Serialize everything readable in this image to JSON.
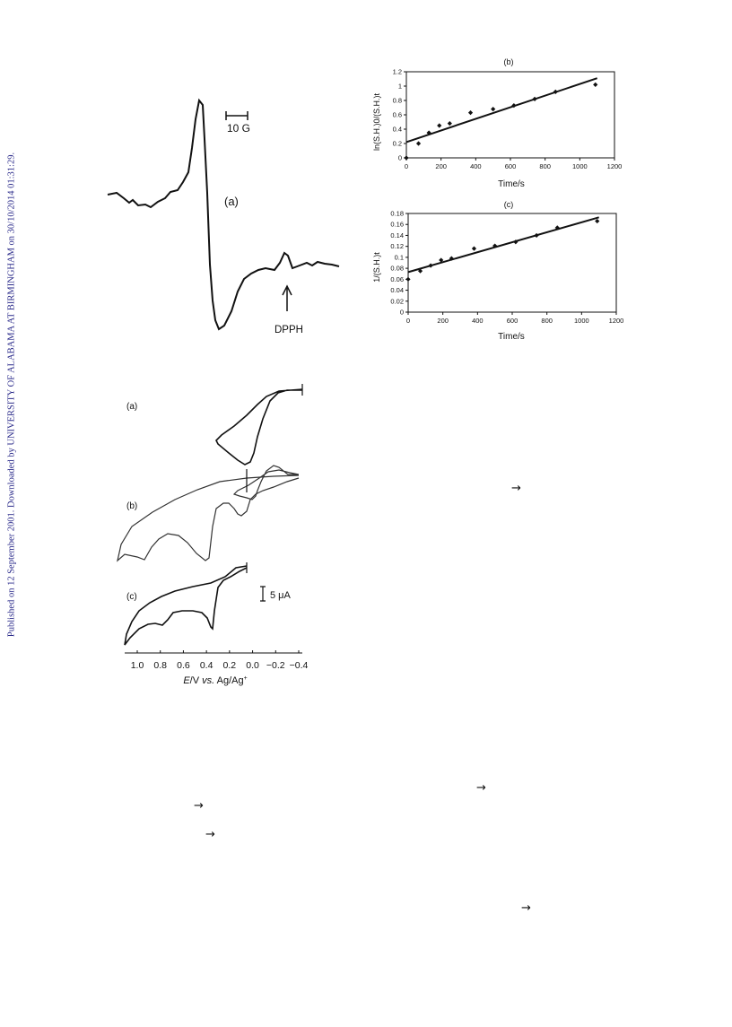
{
  "sidebar_note": "Published on 12 September 2001. Downloaded by UNIVERSITY OF ALABAMA AT BIRMINGHAM on 30/10/2014 01:31:29.",
  "esr": {
    "label": "(a)",
    "scale_label": "10 G",
    "marker_label": "DPPH"
  },
  "arrows": [
    "→",
    "→",
    "→",
    "→",
    "→"
  ],
  "chart_data": [
    {
      "type": "scatter",
      "panel_label": "(b)",
      "title": "",
      "xlabel": "Time/s",
      "ylabel": "ln(S.H.)0/(S.H.)t",
      "xlim": [
        0,
        1200
      ],
      "ylim": [
        0,
        1.2
      ],
      "x_ticks": [
        "0",
        "200",
        "400",
        "600",
        "800",
        "1000",
        "1200"
      ],
      "y_ticks": [
        "0",
        "0.2",
        "0.4",
        "0.6",
        "0.8",
        "1",
        "1.2"
      ],
      "points": [
        [
          0,
          0
        ],
        [
          70,
          0.2
        ],
        [
          130,
          0.35
        ],
        [
          190,
          0.45
        ],
        [
          250,
          0.48
        ],
        [
          370,
          0.63
        ],
        [
          500,
          0.68
        ],
        [
          620,
          0.73
        ],
        [
          740,
          0.82
        ],
        [
          860,
          0.92
        ],
        [
          1090,
          1.02
        ]
      ],
      "fit": [
        [
          0,
          0.22
        ],
        [
          1100,
          1.11
        ]
      ],
      "grid": false,
      "legend": "none"
    },
    {
      "type": "scatter",
      "panel_label": "(c)",
      "title": "",
      "xlabel": "Time/s",
      "ylabel": "1/(S.H.)t",
      "xlim": [
        0,
        1200
      ],
      "ylim": [
        0,
        0.18
      ],
      "x_ticks": [
        "0",
        "200",
        "400",
        "600",
        "800",
        "1000",
        "1200"
      ],
      "y_ticks": [
        "0",
        "0.02",
        "0.04",
        "0.06",
        "0.08",
        "0.1",
        "0.12",
        "0.14",
        "0.16",
        "0.18"
      ],
      "points": [
        [
          0,
          0.06
        ],
        [
          70,
          0.075
        ],
        [
          130,
          0.085
        ],
        [
          190,
          0.095
        ],
        [
          250,
          0.098
        ],
        [
          380,
          0.116
        ],
        [
          500,
          0.121
        ],
        [
          620,
          0.128
        ],
        [
          740,
          0.14
        ],
        [
          860,
          0.154
        ],
        [
          1090,
          0.166
        ]
      ],
      "fit": [
        [
          0,
          0.073
        ],
        [
          1100,
          0.173
        ]
      ],
      "grid": false,
      "legend": "none"
    },
    {
      "type": "line",
      "panel_labels": [
        "(a)",
        "(b)",
        "(c)"
      ],
      "xlabel_var": "E",
      "xlabel_rest": "/V ",
      "xlabel_vs": "vs.",
      "xlabel_ref": " Ag/Ag",
      "xlabel_sup": "+",
      "x_ticks": [
        "1.0",
        "0.8",
        "0.6",
        "0.4",
        "0.2",
        "0.0",
        "−0.2",
        "−0.4"
      ],
      "xlim": [
        1.1,
        -0.5
      ],
      "scale_bar_label": "5 μA",
      "grid": false,
      "legend": "none"
    }
  ]
}
